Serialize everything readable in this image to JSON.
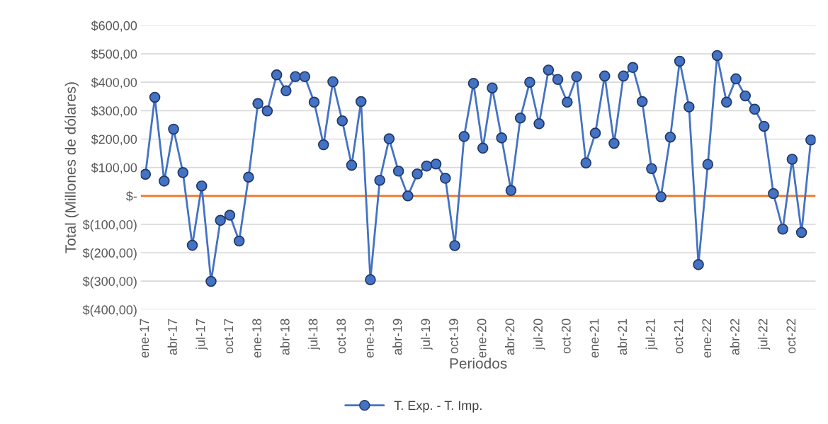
{
  "chart_data": {
    "type": "line",
    "xlabel": "Periodos",
    "ylabel": "Total (Millones de dólares)",
    "categories": [
      "ene-17",
      null,
      null,
      "abr-17",
      null,
      null,
      "jul-17",
      null,
      null,
      "oct-17",
      null,
      null,
      "ene-18",
      null,
      null,
      "abr-18",
      null,
      null,
      "jul-18",
      null,
      null,
      "oct-18",
      null,
      null,
      "ene-19",
      null,
      null,
      "abr-19",
      null,
      null,
      "jul-19",
      null,
      null,
      "oct-19",
      null,
      null,
      "ene-20",
      null,
      null,
      "abr-20",
      null,
      null,
      "jul-20",
      null,
      null,
      "oct-20",
      null,
      null,
      "ene-21",
      null,
      null,
      "abr-21",
      null,
      null,
      "jul-21",
      null,
      null,
      "oct-21",
      null,
      null,
      "ene-22",
      null,
      null,
      "abr-22",
      null,
      null,
      "jul-22",
      null,
      null,
      "oct-22",
      null,
      null
    ],
    "series": [
      {
        "name": "T. Exp. - T. Imp.",
        "color": "#4472c4",
        "values": [
          76,
          347,
          52,
          235,
          82,
          -174,
          35,
          -301,
          -86,
          -68,
          -159,
          66,
          325,
          299,
          426,
          370,
          420,
          420,
          330,
          180,
          402,
          264,
          108,
          332,
          -295,
          55,
          201,
          87,
          0,
          77,
          105,
          112,
          62,
          -175,
          209,
          396,
          168,
          380,
          204,
          19,
          274,
          400,
          254,
          443,
          410,
          330,
          420,
          116,
          221,
          422,
          185,
          422,
          452,
          332,
          96,
          -3,
          207,
          474,
          313,
          -242,
          111,
          494,
          330,
          412,
          352,
          305,
          245,
          8,
          -117,
          129,
          -129,
          197
        ]
      }
    ],
    "ylim": [
      -400,
      600
    ],
    "yticks": [
      {
        "value": -400,
        "label": "$(400,00)"
      },
      {
        "value": -300,
        "label": "$(300,00)"
      },
      {
        "value": -200,
        "label": "$(200,00)"
      },
      {
        "value": -100,
        "label": "$(100,00)"
      },
      {
        "value": 0,
        "label": "$-"
      },
      {
        "value": 100,
        "label": "$100,00"
      },
      {
        "value": 200,
        "label": "$200,00"
      },
      {
        "value": 300,
        "label": "$300,00"
      },
      {
        "value": 400,
        "label": "$400,00"
      },
      {
        "value": 500,
        "label": "$500,00"
      },
      {
        "value": 600,
        "label": "$600,00"
      }
    ],
    "ref_lines": [
      {
        "axis": "y",
        "value": 0,
        "color": "#ed7d31"
      }
    ],
    "grid": "y",
    "legend": "bottom",
    "marker": "circle",
    "line_style": "solid"
  }
}
